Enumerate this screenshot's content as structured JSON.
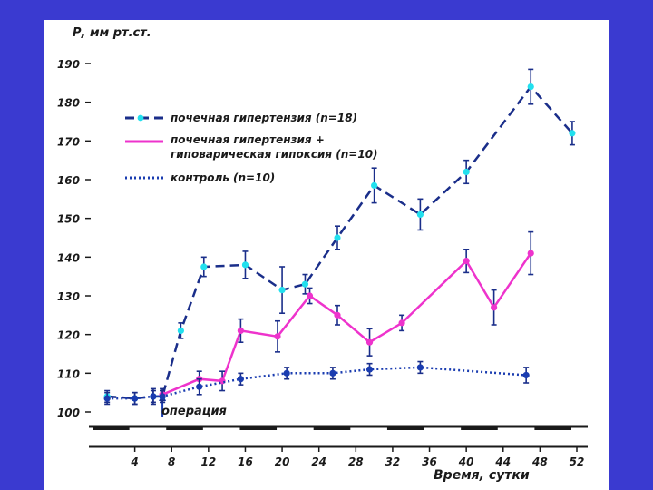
{
  "chart_data": {
    "type": "line",
    "title": "",
    "ylabel": "Р, мм рт.ст.",
    "xlabel": "Время, сутки",
    "ylim": [
      100,
      190
    ],
    "xlim": [
      0,
      52
    ],
    "yticks": [
      100,
      110,
      120,
      130,
      140,
      150,
      160,
      170,
      180,
      190
    ],
    "xticks": [
      4,
      8,
      12,
      16,
      20,
      24,
      28,
      32,
      36,
      40,
      44,
      48,
      52
    ],
    "annotation": {
      "text": "операция",
      "x": 7
    },
    "legend": {
      "placement": "top-left"
    },
    "series": [
      {
        "name": "почечная гипертензия (n=18)",
        "color": "#1a2e8a",
        "marker_color": "#22e0ee",
        "style": "dashed",
        "x": [
          1,
          4,
          6,
          7,
          9,
          11.5,
          16,
          20,
          22.5,
          26,
          30,
          35,
          40,
          47,
          51.5
        ],
        "y": [
          104,
          103.5,
          104,
          104,
          121,
          137.5,
          138,
          131.5,
          133,
          145,
          158.5,
          151,
          162,
          184,
          172
        ],
        "err": [
          1.5,
          1.5,
          2,
          1.5,
          2,
          2.5,
          3.5,
          6,
          2.5,
          3,
          4.5,
          4,
          3,
          4.5,
          3
        ]
      },
      {
        "name": "почечная гипертензия + гиповарическая гипоксия (n=10)",
        "color": "#ee33cc",
        "marker_color": "#ee33cc",
        "style": "solid",
        "x": [
          7,
          11,
          13.5,
          15.5,
          19.5,
          23,
          26,
          29.5,
          33,
          40,
          43,
          47
        ],
        "y": [
          104.5,
          108.5,
          108,
          121,
          119.5,
          130,
          125,
          118,
          123,
          139,
          127,
          141
        ],
        "err": [
          1.5,
          2,
          2.5,
          3,
          4,
          2,
          2.5,
          3.5,
          2,
          3,
          4.5,
          5.5
        ]
      },
      {
        "name": "контроль (n=10)",
        "color": "#1a3cb0",
        "marker_color": "#1a3cb0",
        "style": "dotted",
        "x": [
          1,
          4,
          6,
          7,
          11,
          15.5,
          20.5,
          25.5,
          29.5,
          35,
          46.5
        ],
        "y": [
          103.5,
          103.5,
          104,
          104,
          106.5,
          108.5,
          110,
          110,
          111,
          111.5,
          109.5
        ],
        "err": [
          1.5,
          1.5,
          1.5,
          1.5,
          2,
          1.5,
          1.5,
          1.5,
          1.5,
          1.5,
          2
        ]
      }
    ]
  }
}
